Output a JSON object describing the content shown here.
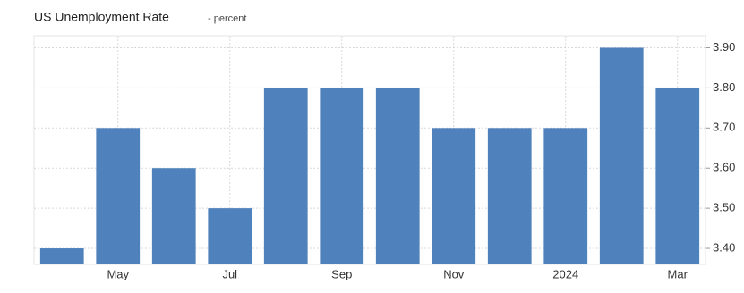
{
  "chart_data": {
    "type": "bar",
    "title": "US Unemployment Rate",
    "subtitle": "- percent",
    "categories": [
      null,
      "May",
      null,
      "Jul",
      null,
      "Sep",
      null,
      "Nov",
      null,
      "2024",
      null,
      "Mar"
    ],
    "values": [
      3.4,
      3.7,
      3.6,
      3.5,
      3.8,
      3.8,
      3.8,
      3.7,
      3.7,
      3.7,
      3.9,
      3.8
    ],
    "color": "#4f81bd",
    "ylim": [
      3.36,
      3.93
    ],
    "yticks": [
      {
        "value": 3.4,
        "label": "3.40"
      },
      {
        "value": 3.5,
        "label": "3.50"
      },
      {
        "value": 3.6,
        "label": "3.60"
      },
      {
        "value": 3.7,
        "label": "3.70"
      },
      {
        "value": 3.8,
        "label": "3.80"
      },
      {
        "value": 3.9,
        "label": "3.90"
      }
    ],
    "grid": true
  }
}
